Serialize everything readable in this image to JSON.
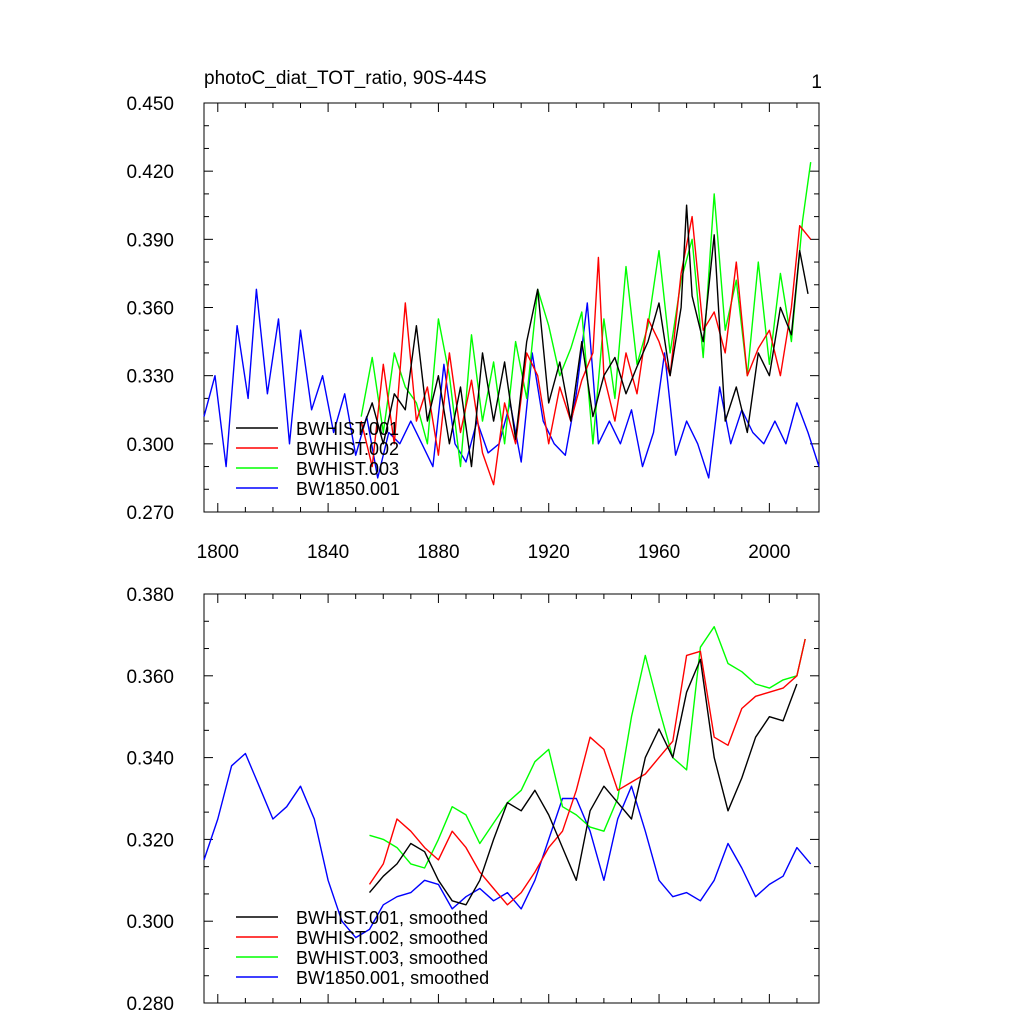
{
  "chart_data": [
    {
      "type": "line",
      "title": "photoC_diat_TOT_ratio, 90S-44S",
      "panel_label": "1",
      "xlim": [
        1795,
        2018
      ],
      "ylim": [
        0.27,
        0.45
      ],
      "xticks": [
        1800,
        1840,
        1880,
        1920,
        1960,
        2000
      ],
      "xtick_labels": [
        "1800",
        "1840",
        "1880",
        "1920",
        "1960",
        "2000"
      ],
      "yticks": [
        0.27,
        0.3,
        0.33,
        0.36,
        0.39,
        0.42,
        0.45
      ],
      "ytick_labels": [
        "0.270",
        "0.300",
        "0.330",
        "0.360",
        "0.390",
        "0.420",
        "0.450"
      ],
      "legend_position": "bottom-left",
      "series": [
        {
          "name": "BWHIST.001",
          "color": "#000000",
          "x": [
            1852,
            1856,
            1860,
            1864,
            1868,
            1872,
            1876,
            1880,
            1884,
            1888,
            1892,
            1896,
            1900,
            1904,
            1908,
            1912,
            1916,
            1920,
            1924,
            1928,
            1932,
            1936,
            1940,
            1944,
            1948,
            1952,
            1956,
            1960,
            1964,
            1968,
            1970,
            1972,
            1976,
            1980,
            1984,
            1988,
            1992,
            1996,
            2000,
            2004,
            2008,
            2011,
            2014
          ],
          "values": [
            0.305,
            0.318,
            0.3,
            0.322,
            0.315,
            0.352,
            0.31,
            0.33,
            0.3,
            0.325,
            0.29,
            0.34,
            0.31,
            0.336,
            0.302,
            0.345,
            0.368,
            0.318,
            0.336,
            0.31,
            0.345,
            0.312,
            0.33,
            0.338,
            0.322,
            0.334,
            0.345,
            0.362,
            0.33,
            0.36,
            0.405,
            0.365,
            0.345,
            0.392,
            0.31,
            0.325,
            0.305,
            0.34,
            0.33,
            0.36,
            0.348,
            0.385,
            0.366
          ]
        },
        {
          "name": "BWHIST.002",
          "color": "#ff0000",
          "x": [
            1852,
            1856,
            1860,
            1864,
            1868,
            1872,
            1876,
            1880,
            1884,
            1888,
            1892,
            1896,
            1900,
            1904,
            1908,
            1912,
            1916,
            1920,
            1924,
            1928,
            1932,
            1936,
            1938,
            1940,
            1944,
            1948,
            1952,
            1956,
            1960,
            1964,
            1968,
            1972,
            1976,
            1980,
            1984,
            1988,
            1992,
            1996,
            2000,
            2004,
            2008,
            2011,
            2015
          ],
          "values": [
            0.31,
            0.29,
            0.335,
            0.3,
            0.362,
            0.31,
            0.325,
            0.295,
            0.34,
            0.305,
            0.328,
            0.296,
            0.282,
            0.318,
            0.3,
            0.34,
            0.33,
            0.3,
            0.325,
            0.31,
            0.328,
            0.34,
            0.382,
            0.33,
            0.31,
            0.34,
            0.322,
            0.355,
            0.345,
            0.33,
            0.375,
            0.4,
            0.35,
            0.358,
            0.34,
            0.38,
            0.33,
            0.342,
            0.35,
            0.33,
            0.36,
            0.396,
            0.39
          ]
        },
        {
          "name": "BWHIST.003",
          "color": "#00ff00",
          "x": [
            1852,
            1856,
            1860,
            1864,
            1868,
            1872,
            1876,
            1880,
            1884,
            1888,
            1892,
            1896,
            1900,
            1904,
            1908,
            1912,
            1916,
            1920,
            1924,
            1928,
            1932,
            1936,
            1940,
            1944,
            1948,
            1952,
            1956,
            1960,
            1964,
            1968,
            1972,
            1976,
            1980,
            1984,
            1988,
            1992,
            1996,
            2000,
            2004,
            2008,
            2012,
            2015
          ],
          "values": [
            0.312,
            0.338,
            0.305,
            0.34,
            0.325,
            0.318,
            0.3,
            0.355,
            0.33,
            0.29,
            0.348,
            0.31,
            0.336,
            0.3,
            0.345,
            0.32,
            0.368,
            0.352,
            0.33,
            0.342,
            0.358,
            0.3,
            0.355,
            0.32,
            0.378,
            0.335,
            0.352,
            0.385,
            0.34,
            0.372,
            0.39,
            0.338,
            0.41,
            0.35,
            0.372,
            0.33,
            0.38,
            0.335,
            0.375,
            0.345,
            0.398,
            0.424
          ]
        },
        {
          "name": "BW1850.001",
          "color": "#0000ff",
          "x": [
            1795,
            1799,
            1803,
            1807,
            1811,
            1814,
            1818,
            1822,
            1826,
            1830,
            1834,
            1838,
            1842,
            1846,
            1850,
            1854,
            1858,
            1862,
            1866,
            1870,
            1874,
            1878,
            1882,
            1886,
            1890,
            1894,
            1898,
            1902,
            1906,
            1910,
            1914,
            1918,
            1922,
            1926,
            1930,
            1934,
            1938,
            1942,
            1946,
            1950,
            1954,
            1958,
            1962,
            1966,
            1970,
            1974,
            1978,
            1982,
            1986,
            1990,
            1994,
            1998,
            2002,
            2006,
            2010,
            2014,
            2018
          ],
          "values": [
            0.312,
            0.33,
            0.29,
            0.352,
            0.32,
            0.368,
            0.322,
            0.355,
            0.3,
            0.35,
            0.315,
            0.33,
            0.305,
            0.322,
            0.295,
            0.312,
            0.285,
            0.305,
            0.3,
            0.31,
            0.3,
            0.29,
            0.335,
            0.3,
            0.292,
            0.31,
            0.296,
            0.3,
            0.318,
            0.292,
            0.34,
            0.31,
            0.3,
            0.295,
            0.322,
            0.362,
            0.3,
            0.31,
            0.3,
            0.315,
            0.29,
            0.305,
            0.34,
            0.295,
            0.31,
            0.3,
            0.285,
            0.325,
            0.3,
            0.315,
            0.305,
            0.3,
            0.31,
            0.3,
            0.318,
            0.305,
            0.29
          ]
        }
      ]
    },
    {
      "type": "line",
      "xlim": [
        1795,
        2018
      ],
      "ylim": [
        0.28,
        0.38
      ],
      "xticks": [
        1800,
        1840,
        1880,
        1920,
        1960,
        2000
      ],
      "yticks": [
        0.28,
        0.3,
        0.32,
        0.34,
        0.36,
        0.38
      ],
      "ytick_labels": [
        "0.280",
        "0.300",
        "0.320",
        "0.340",
        "0.360",
        "0.380"
      ],
      "legend_position": "bottom-left",
      "series": [
        {
          "name": "BWHIST.001, smoothed",
          "color": "#000000",
          "x": [
            1855,
            1860,
            1865,
            1870,
            1875,
            1880,
            1885,
            1890,
            1895,
            1900,
            1905,
            1910,
            1915,
            1920,
            1925,
            1930,
            1935,
            1940,
            1945,
            1950,
            1955,
            1960,
            1965,
            1970,
            1975,
            1980,
            1985,
            1990,
            1995,
            2000,
            2005,
            2010
          ],
          "values": [
            0.307,
            0.311,
            0.314,
            0.319,
            0.317,
            0.31,
            0.305,
            0.304,
            0.31,
            0.32,
            0.329,
            0.327,
            0.332,
            0.326,
            0.318,
            0.31,
            0.327,
            0.333,
            0.329,
            0.325,
            0.34,
            0.347,
            0.34,
            0.356,
            0.364,
            0.34,
            0.327,
            0.335,
            0.345,
            0.35,
            0.349,
            0.358
          ]
        },
        {
          "name": "BWHIST.002, smoothed",
          "color": "#ff0000",
          "x": [
            1855,
            1860,
            1865,
            1870,
            1875,
            1880,
            1885,
            1890,
            1895,
            1900,
            1905,
            1910,
            1915,
            1920,
            1925,
            1930,
            1935,
            1940,
            1945,
            1950,
            1955,
            1960,
            1965,
            1970,
            1975,
            1980,
            1985,
            1990,
            1995,
            2000,
            2005,
            2010,
            2013
          ],
          "values": [
            0.309,
            0.314,
            0.325,
            0.322,
            0.318,
            0.315,
            0.322,
            0.318,
            0.312,
            0.308,
            0.304,
            0.307,
            0.312,
            0.318,
            0.322,
            0.332,
            0.345,
            0.342,
            0.332,
            0.334,
            0.336,
            0.34,
            0.344,
            0.365,
            0.366,
            0.345,
            0.343,
            0.352,
            0.355,
            0.356,
            0.357,
            0.36,
            0.369
          ]
        },
        {
          "name": "BWHIST.003, smoothed",
          "color": "#00ff00",
          "x": [
            1855,
            1860,
            1865,
            1870,
            1875,
            1880,
            1885,
            1890,
            1895,
            1900,
            1905,
            1910,
            1915,
            1920,
            1925,
            1930,
            1935,
            1940,
            1945,
            1950,
            1955,
            1960,
            1965,
            1970,
            1975,
            1980,
            1985,
            1990,
            1995,
            2000,
            2005,
            2010,
            2013
          ],
          "values": [
            0.321,
            0.32,
            0.318,
            0.314,
            0.313,
            0.32,
            0.328,
            0.326,
            0.319,
            0.324,
            0.329,
            0.332,
            0.339,
            0.342,
            0.328,
            0.326,
            0.323,
            0.322,
            0.33,
            0.35,
            0.365,
            0.352,
            0.34,
            0.337,
            0.367,
            0.372,
            0.363,
            0.361,
            0.358,
            0.357,
            0.359,
            0.36,
            0.369
          ]
        },
        {
          "name": "BW1850.001, smoothed",
          "color": "#0000ff",
          "x": [
            1795,
            1800,
            1805,
            1810,
            1815,
            1820,
            1825,
            1830,
            1835,
            1840,
            1845,
            1850,
            1855,
            1860,
            1865,
            1870,
            1875,
            1880,
            1885,
            1890,
            1895,
            1900,
            1905,
            1910,
            1915,
            1920,
            1925,
            1930,
            1935,
            1940,
            1945,
            1950,
            1955,
            1960,
            1965,
            1970,
            1975,
            1980,
            1985,
            1990,
            1995,
            2000,
            2005,
            2010,
            2015
          ],
          "values": [
            0.315,
            0.325,
            0.338,
            0.341,
            0.333,
            0.325,
            0.328,
            0.333,
            0.325,
            0.31,
            0.3,
            0.296,
            0.298,
            0.304,
            0.306,
            0.307,
            0.31,
            0.309,
            0.303,
            0.306,
            0.308,
            0.305,
            0.307,
            0.303,
            0.31,
            0.32,
            0.33,
            0.33,
            0.322,
            0.31,
            0.325,
            0.333,
            0.322,
            0.31,
            0.306,
            0.307,
            0.305,
            0.31,
            0.319,
            0.313,
            0.306,
            0.309,
            0.311,
            0.318,
            0.314
          ]
        }
      ]
    }
  ]
}
